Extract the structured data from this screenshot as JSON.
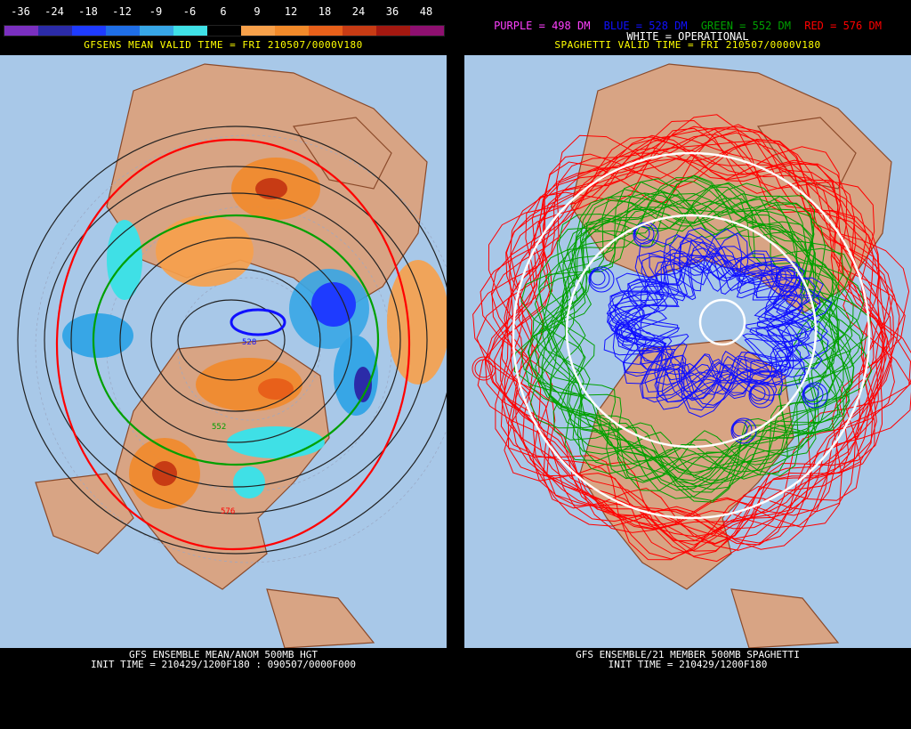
{
  "left": {
    "legend": {
      "labels": [
        "-36",
        "-24",
        "-18",
        "-12",
        "-9",
        "-6",
        "6",
        "9",
        "12",
        "18",
        "24",
        "36",
        "48"
      ],
      "colors": [
        "#7a2fbf",
        "#2b2ba8",
        "#1e3bff",
        "#1f6ee6",
        "#37a6e6",
        "#3fe0e6",
        "#000000",
        "#f7a04a",
        "#f28a2a",
        "#e8601a",
        "#c73b14",
        "#a31810",
        "#8e1070"
      ]
    },
    "valid_time": "GFSENS MEAN VALID TIME = FRI 210507/0000V180",
    "footer_line1": "GFS ENSEMBLE MEAN/ANOM 500MB HGT",
    "footer_line2": "INIT TIME = 210429/1200F180 : 090507/0000F000",
    "contour_labels": [
      "528",
      "552",
      "576"
    ]
  },
  "right": {
    "header": {
      "purple": "PURPLE = 498 DM",
      "blue": "BLUE = 528 DM",
      "green": "GREEN = 552 DM",
      "red": "RED = 576 DM"
    },
    "operational": "WHITE = OPERATIONAL",
    "valid_time": "SPAGHETTI VALID TIME = FRI 210507/0000V180",
    "footer_line1": "GFS ENSEMBLE/21 MEMBER 500MB SPAGHETTI",
    "footer_line2": "INIT TIME = 210429/1200F180"
  },
  "colors": {
    "ocean": "#a8c8e8",
    "land": "#d8a484",
    "coast": "#8b4a2a",
    "purple": "#ff40ff",
    "blue": "#1010ff",
    "green": "#00a000",
    "red": "#ff0000",
    "white": "#ffffff"
  }
}
